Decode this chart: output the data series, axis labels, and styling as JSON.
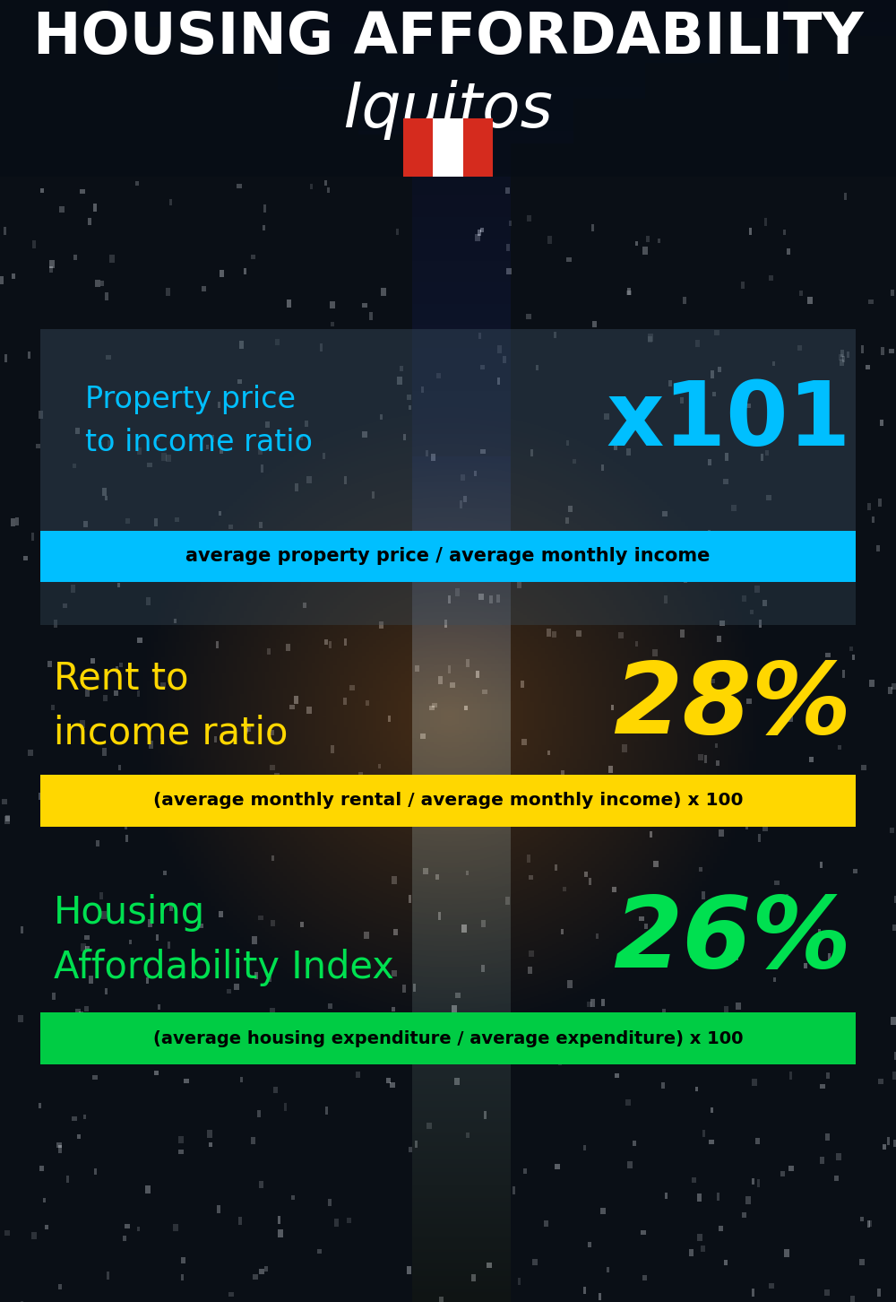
{
  "title_line1": "HOUSING AFFORDABILITY",
  "title_line2": "Iquitos",
  "bg_color": "#0a1520",
  "section1_label": "Property price\nto income ratio",
  "section1_value": "x101",
  "section1_label_color": "#00bfff",
  "section1_value_color": "#00bfff",
  "section1_band_text": "average property price / average monthly income",
  "section1_band_bg": "#00bfff",
  "section1_band_text_color": "#000000",
  "section2_label": "Rent to\nincome ratio",
  "section2_value": "28%",
  "section2_label_color": "#ffd700",
  "section2_value_color": "#ffd700",
  "section2_band_text": "(average monthly rental / average monthly income) x 100",
  "section2_band_bg": "#ffd700",
  "section2_band_text_color": "#000000",
  "section3_label": "Housing\nAffordability Index",
  "section3_value": "26%",
  "section3_label_color": "#00e050",
  "section3_value_color": "#00e050",
  "section3_band_text": "(average housing expenditure / average expenditure) x 100",
  "section3_band_bg": "#00cc44",
  "section3_band_text_color": "#000000",
  "flag_colors": [
    "#d52b1e",
    "#ffffff",
    "#d52b1e"
  ]
}
